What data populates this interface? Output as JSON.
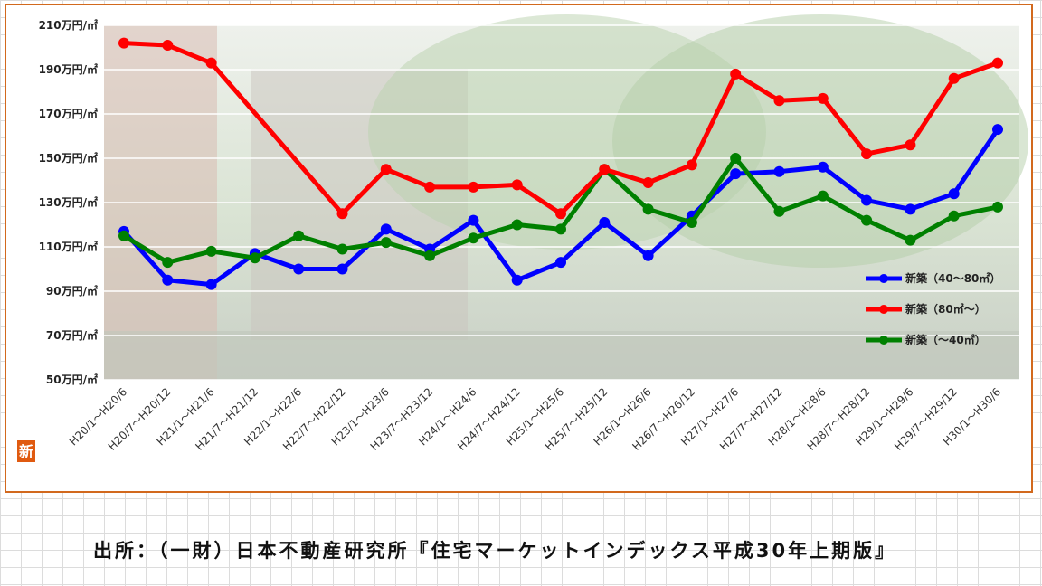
{
  "chart_data": {
    "type": "line",
    "title": "",
    "xlabel": "",
    "ylabel": "",
    "ylim": [
      50,
      210
    ],
    "y_unit_suffix": "万円/㎡",
    "y_ticks": [
      50,
      70,
      90,
      110,
      130,
      150,
      170,
      190,
      210
    ],
    "grid": "horizontal",
    "legend_position": "right",
    "categories": [
      "H20/1～H20/6",
      "H20/7～H20/12",
      "H21/1～H21/6",
      "H21/7～H21/12",
      "H22/1～H22/6",
      "H22/7～H22/12",
      "H23/1～H23/6",
      "H23/7～H23/12",
      "H24/1～H24/6",
      "H24/7～H24/12",
      "H25/1～H25/6",
      "H25/7～H25/12",
      "H26/1～H26/6",
      "H26/7～H26/12",
      "H27/1～H27/6",
      "H27/7～H27/12",
      "H28/1～H28/6",
      "H28/7～H28/12",
      "H29/1～H29/6",
      "H29/7～H29/12",
      "H30/1～H30/6"
    ],
    "series": [
      {
        "name": "新築（40～80㎡）",
        "color": "#0000ff",
        "values": [
          117,
          95,
          93,
          107,
          100,
          100,
          118,
          109,
          122,
          95,
          103,
          121,
          106,
          124,
          143,
          144,
          146,
          131,
          127,
          134,
          163
        ]
      },
      {
        "name": "新築（80㎡～）",
        "color": "#ff0000",
        "values": [
          202,
          201,
          193,
          null,
          null,
          125,
          145,
          137,
          137,
          138,
          125,
          145,
          139,
          147,
          188,
          176,
          177,
          152,
          156,
          186,
          193
        ],
        "note_missing": "H21/7～H22/1 segment drawn straight"
      },
      {
        "name": "新築（～40㎡）",
        "color": "#008000",
        "values": [
          115,
          103,
          108,
          105,
          115,
          109,
          112,
          106,
          114,
          120,
          118,
          145,
          127,
          121,
          150,
          126,
          133,
          122,
          113,
          124,
          128
        ]
      }
    ]
  },
  "badge": {
    "text": "新",
    "color": "#e05a10"
  },
  "source_note": "出所：（一財）日本不動産研究所『住宅マーケットインデックス平成30年上期版』"
}
